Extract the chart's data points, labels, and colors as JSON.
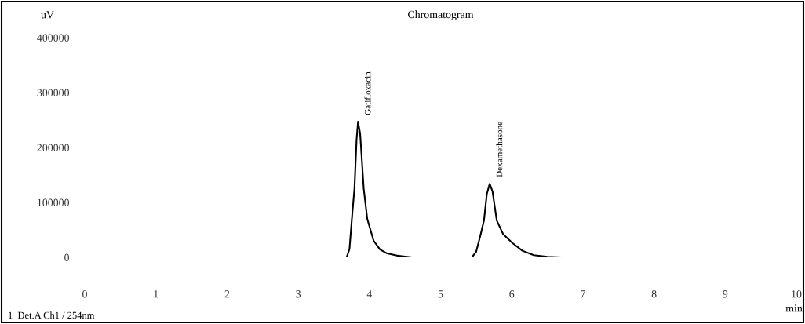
{
  "chart_data": {
    "type": "line",
    "title": "Chromatogram",
    "xlabel": "min",
    "ylabel": "uV",
    "x": [
      0,
      3.68,
      3.72,
      3.76,
      3.79,
      3.82,
      3.84,
      3.87,
      3.92,
      3.97,
      4.06,
      4.15,
      4.25,
      4.4,
      4.6,
      5.44,
      5.5,
      5.56,
      5.61,
      5.65,
      5.69,
      5.73,
      5.79,
      5.88,
      6.01,
      6.15,
      6.31,
      6.5,
      6.7,
      10
    ],
    "series": [
      {
        "color": "#000000",
        "values": [
          0,
          0,
          15000,
          80000,
          125000,
          215000,
          247000,
          225000,
          125000,
          70000,
          30000,
          14000,
          7000,
          3000,
          0,
          0,
          10000,
          40000,
          67000,
          115000,
          134000,
          120000,
          67000,
          42000,
          26000,
          12000,
          4000,
          1000,
          0,
          0
        ]
      }
    ],
    "xlim": [
      0,
      10
    ],
    "xticks": [
      0,
      1,
      2,
      3,
      4,
      5,
      6,
      7,
      8,
      9,
      10
    ],
    "ylim": [
      0,
      400000
    ],
    "yticks": [
      0,
      100000,
      200000,
      300000,
      400000
    ],
    "grid": false,
    "legend": false,
    "marker": "none",
    "line_style": "solid",
    "annotations": [
      {
        "text": "Gatifloxacin",
        "x": 3.84,
        "y": 247000
      },
      {
        "text": "Dexamethasone",
        "x": 5.69,
        "y": 134000
      },
      "1  Det.A Ch1 / 254nm"
    ]
  }
}
